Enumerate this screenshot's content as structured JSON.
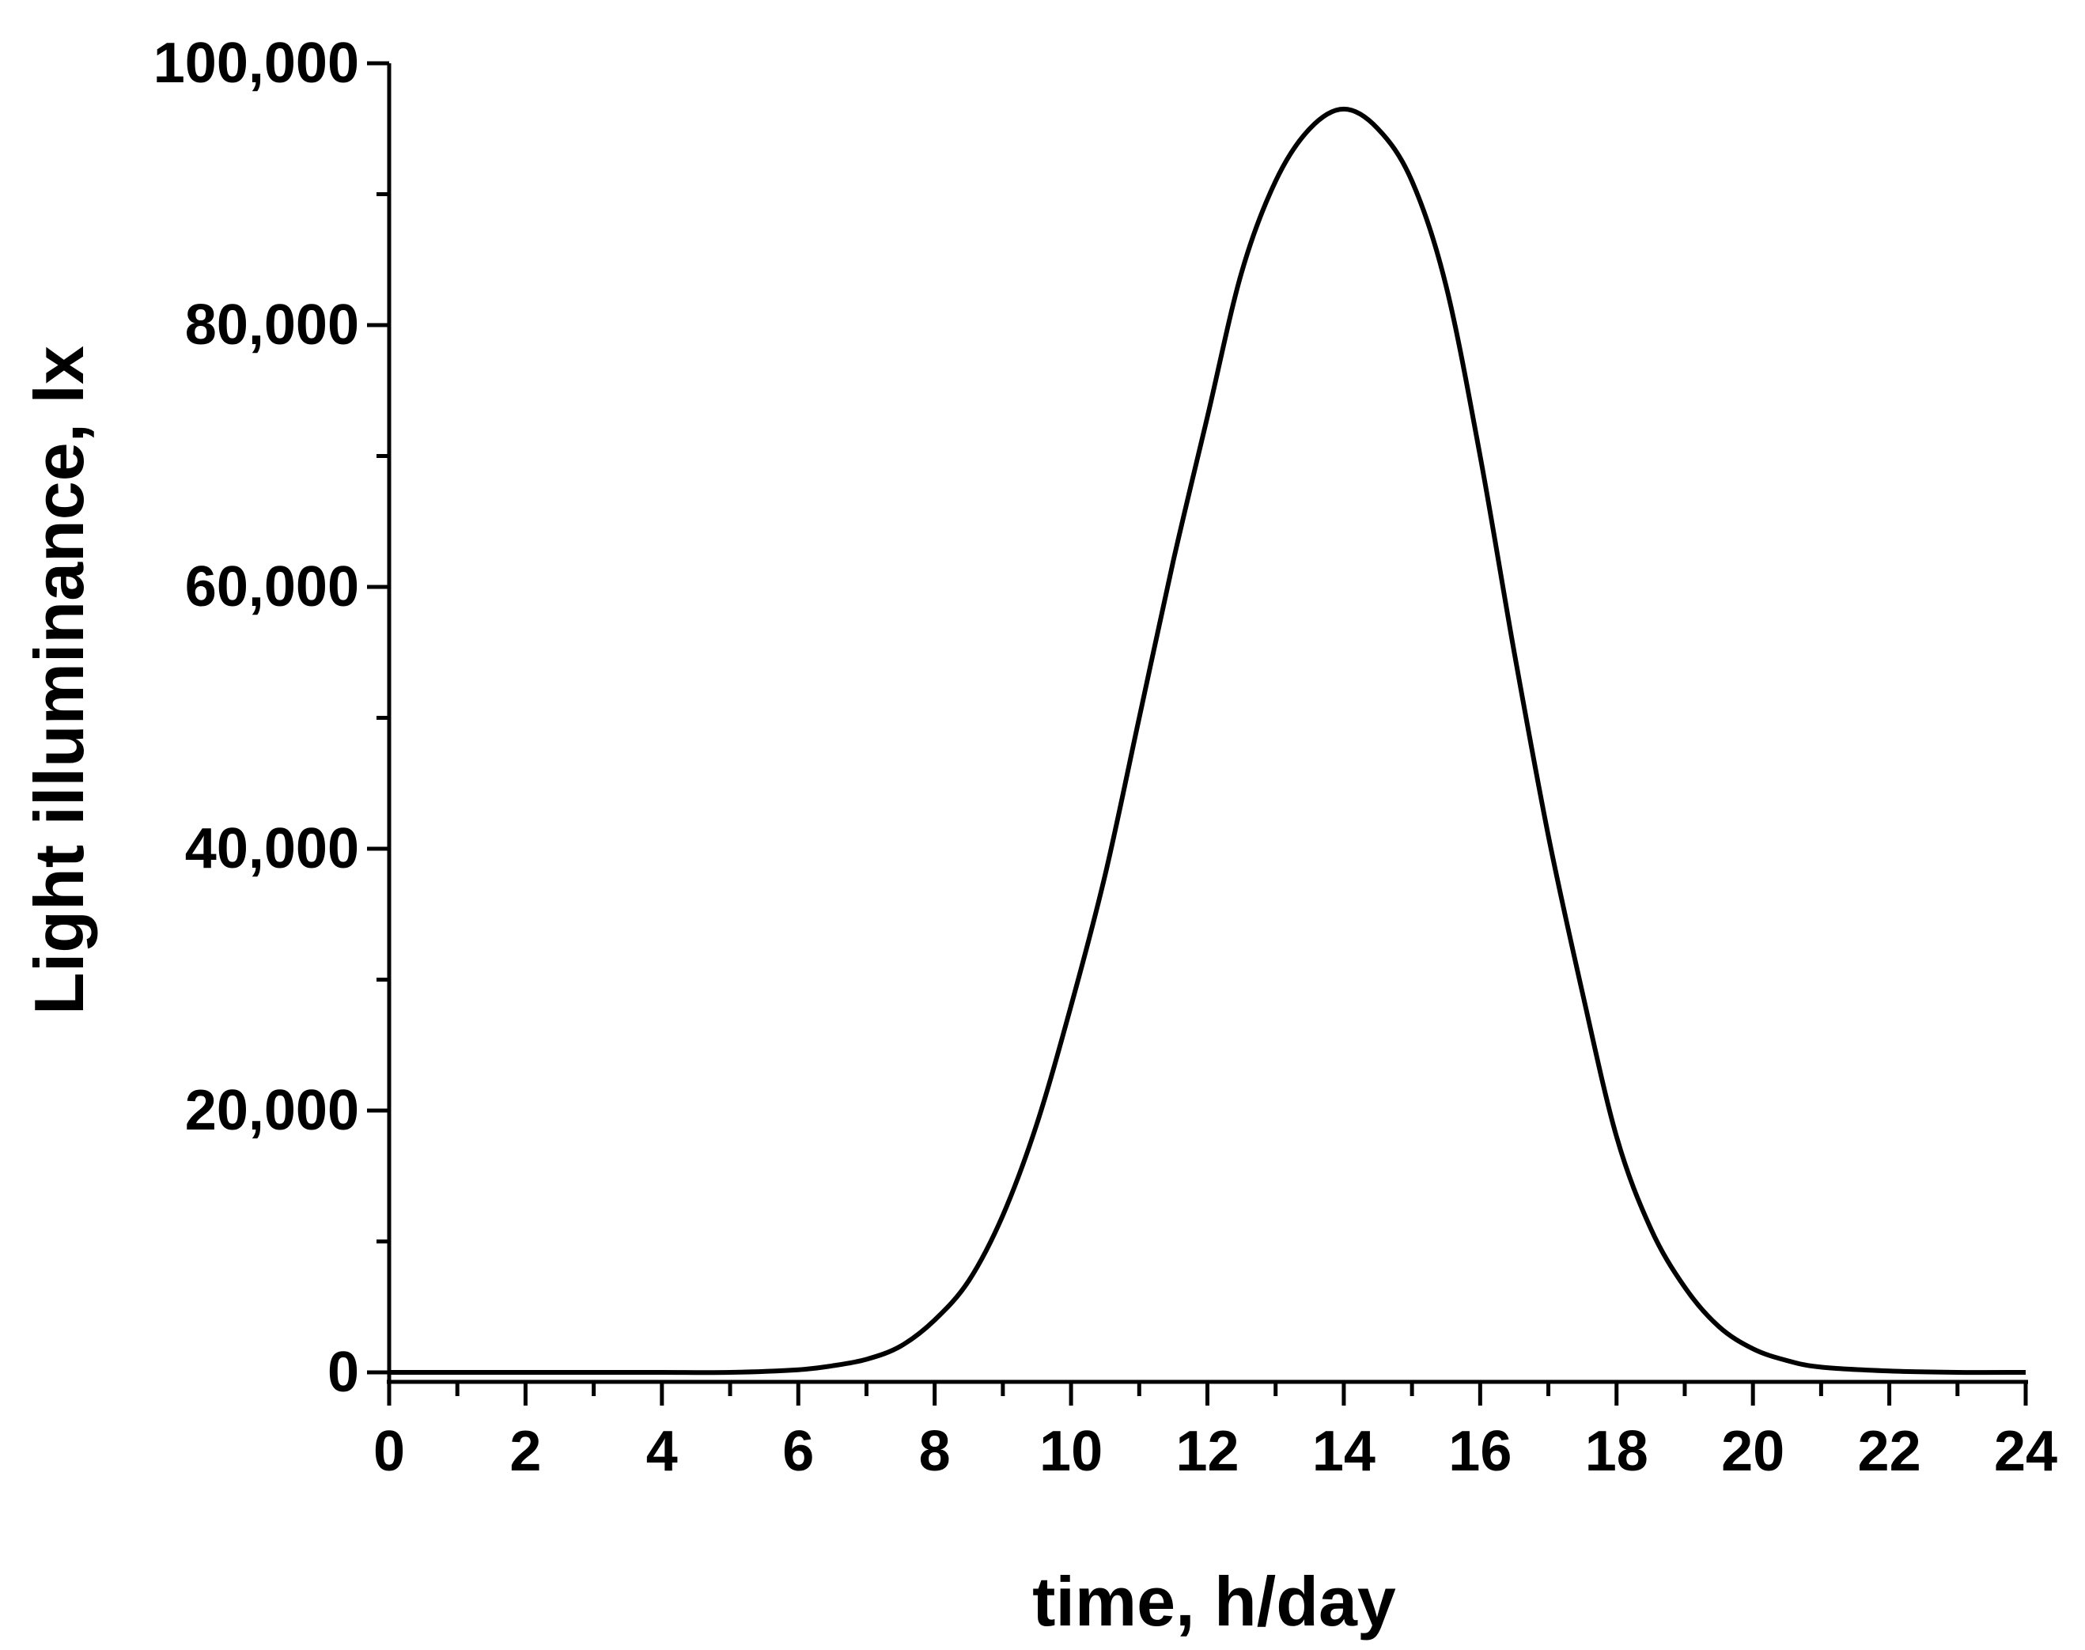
{
  "chart_data": {
    "type": "line",
    "title": "",
    "xlabel": "time, h/day",
    "ylabel": "Light illuminance, lx",
    "xlim": [
      0,
      24
    ],
    "ylim": [
      0,
      100000
    ],
    "x_ticks": [
      "0",
      "2",
      "4",
      "6",
      "8",
      "10",
      "12",
      "14",
      "16",
      "18",
      "20",
      "22",
      "24"
    ],
    "y_ticks": [
      "0",
      "20,000",
      "40,000",
      "60,000",
      "80,000",
      "100,000"
    ],
    "grid": false,
    "legend": "none",
    "line_color": "#000000",
    "series": [
      {
        "x": [
          0,
          1,
          2,
          3,
          4,
          5,
          6,
          6.5,
          7,
          7.5,
          8,
          8.5,
          9,
          9.5,
          10,
          10.5,
          11,
          11.5,
          12,
          12.5,
          13,
          13.5,
          14,
          14.5,
          15,
          15.5,
          16,
          16.5,
          17,
          17.5,
          18,
          18.5,
          19,
          19.5,
          20,
          20.5,
          21,
          22,
          23,
          24
        ],
        "y": [
          0,
          0,
          0,
          0,
          0,
          0,
          200,
          500,
          1000,
          2000,
          4000,
          7000,
          12000,
          19000,
          28000,
          38000,
          50000,
          62000,
          73000,
          84000,
          91000,
          95000,
          96500,
          95000,
          91000,
          83000,
          70000,
          55000,
          41000,
          29000,
          18000,
          11000,
          6500,
          3500,
          1800,
          900,
          400,
          100,
          0,
          0
        ]
      }
    ]
  }
}
